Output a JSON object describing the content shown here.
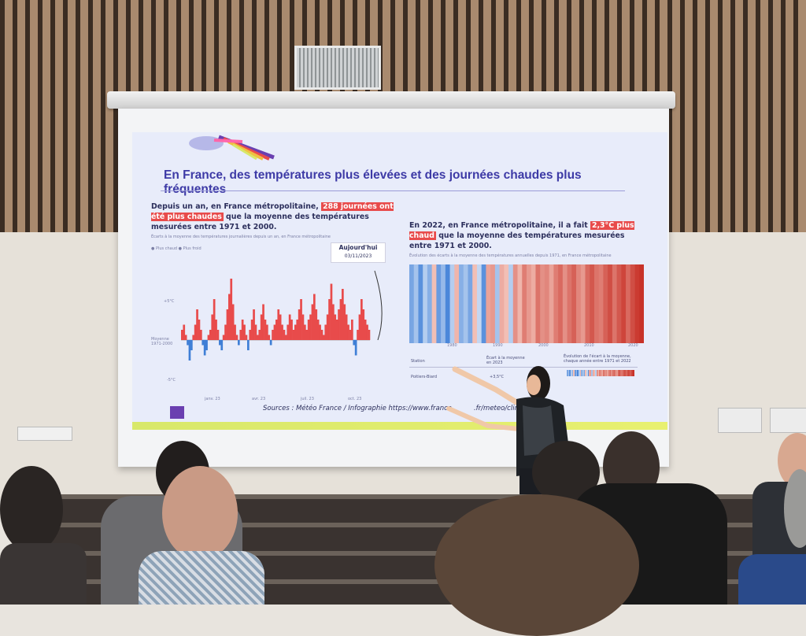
{
  "slide": {
    "title": "En France, des températures plus élevées et des journées chaudes plus fréquentes",
    "left_text_before": "Depuis un an, en France métropolitaine, ",
    "left_highlight": "288 journées ont été plus chaudes",
    "left_text_after": " que la moyenne des températures mesurées entre 1971 et 2000.",
    "left_caption": "Écarts à la moyenne des températures journalières depuis un an, en France métropolitaine",
    "left_legend": "● Plus chaud  ● Plus froid",
    "callout_label": "Aujourd'hui",
    "callout_date": "03/11/2023",
    "left_axis": [
      "+5°C",
      "Moyenne 1971-2000",
      "-5°C"
    ],
    "left_months": [
      "janv. 23",
      "avr. 23",
      "juil. 23",
      "oct. 23"
    ],
    "right_text_before": "En 2022, en France métropolitaine, il a fait ",
    "right_highlight": "2,3°C plus chaud",
    "right_text_after": " que la moyenne des températures mesurées entre 1971 et 2000.",
    "right_caption": "Évolution des écarts à la moyenne des températures annuelles depuis 1971, en France métropolitaine",
    "right_years": [
      "1980",
      "1990",
      "2000",
      "2010",
      "2020"
    ],
    "table_headers": [
      "Station",
      "Écart à la moyenne en 2023",
      "Évolution de l'écart à la moyenne, chaque année entre 1971 et 2022"
    ],
    "table_station": "Poitiers-Biard",
    "table_value": "+3,5°C",
    "footer": "Sources : Météo France / Infographie https://www.france",
    "footer_tail": ".fr/meteo/clim"
  },
  "colors": {
    "warm": "#e84b4b",
    "cold": "#3f7fd6",
    "title": "#3d3aa6",
    "slide_bg": "#e8ecfa"
  },
  "stripes": [
    -0.6,
    -0.3,
    -0.8,
    -0.2,
    -0.5,
    0.1,
    -0.7,
    -0.4,
    -0.9,
    -0.2,
    0.2,
    -0.5,
    -0.3,
    -0.6,
    0.1,
    -0.1,
    -0.8,
    0.4,
    0.5,
    -0.3,
    0.3,
    0.1,
    -0.2,
    0.6,
    0.2,
    0.8,
    0.5,
    0.3,
    0.9,
    0.6,
    0.7,
    0.4,
    0.8,
    1.0,
    0.6,
    0.9,
    1.1,
    0.7,
    0.5,
    1.0,
    1.2,
    0.9,
    0.8,
    1.1,
    1.3,
    0.9,
    1.2,
    1.4,
    1.0,
    1.3,
    1.5,
    1.6
  ],
  "daily_anomalies": [
    2,
    3,
    1,
    -1,
    -4,
    -2,
    1,
    3,
    6,
    4,
    2,
    -1,
    -3,
    -2,
    1,
    2,
    5,
    8,
    4,
    2,
    -1,
    -2,
    1,
    3,
    6,
    9,
    12,
    7,
    3,
    1,
    -1,
    2,
    4,
    3,
    1,
    -2,
    2,
    4,
    6,
    3,
    1,
    2,
    5,
    7,
    4,
    3,
    1,
    -1,
    2,
    3,
    4,
    6,
    5,
    3,
    2,
    1,
    3,
    5,
    4,
    2,
    3,
    4,
    6,
    8,
    5,
    3,
    2,
    4,
    5,
    7,
    9,
    6,
    4,
    3,
    2,
    1,
    3,
    5,
    8,
    11,
    7,
    5,
    4,
    6,
    8,
    10,
    7,
    5,
    3,
    2,
    4,
    -1,
    -3,
    2,
    5,
    8,
    6,
    4,
    3,
    2
  ]
}
